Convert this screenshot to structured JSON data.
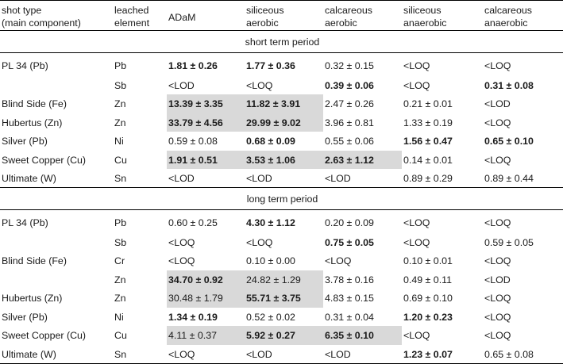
{
  "columns": [
    {
      "line1": "shot type",
      "line2": "(main component)"
    },
    {
      "line1": "leached",
      "line2": "element"
    },
    {
      "line1": "ADaM",
      "line2": ""
    },
    {
      "line1": "siliceous",
      "line2": "aerobic"
    },
    {
      "line1": "calcareous",
      "line2": "aerobic"
    },
    {
      "line1": "siliceous",
      "line2": "anaerobic"
    },
    {
      "line1": "calcareous",
      "line2": "anaerobic"
    }
  ],
  "sections": [
    {
      "title": "short term period",
      "rows": [
        {
          "shot": "PL 34 (Pb)",
          "element": "Pb",
          "cells": [
            {
              "v": "1.81 ± 0.26",
              "bold": true,
              "shade": false
            },
            {
              "v": "1.77 ± 0.36",
              "bold": true,
              "shade": false
            },
            {
              "v": "0.32 ± 0.15",
              "bold": false,
              "shade": false
            },
            {
              "v": "<LOQ",
              "bold": false,
              "shade": false
            },
            {
              "v": "<LOQ",
              "bold": false,
              "shade": false
            }
          ]
        },
        {
          "shot": "",
          "element": "Sb",
          "cells": [
            {
              "v": "<LOD",
              "bold": false,
              "shade": false
            },
            {
              "v": "<LOQ",
              "bold": false,
              "shade": false
            },
            {
              "v": "0.39 ± 0.06",
              "bold": true,
              "shade": false
            },
            {
              "v": "<LOQ",
              "bold": false,
              "shade": false
            },
            {
              "v": "0.31 ± 0.08",
              "bold": true,
              "shade": false
            }
          ]
        },
        {
          "shot": "Blind Side (Fe)",
          "element": "Zn",
          "cells": [
            {
              "v": "13.39 ± 3.35",
              "bold": true,
              "shade": true
            },
            {
              "v": "11.82 ± 3.91",
              "bold": true,
              "shade": true
            },
            {
              "v": "2.47 ± 0.26",
              "bold": false,
              "shade": false
            },
            {
              "v": "0.21 ± 0.01",
              "bold": false,
              "shade": false
            },
            {
              "v": "<LOD",
              "bold": false,
              "shade": false
            }
          ]
        },
        {
          "shot": "Hubertus (Zn)",
          "element": "Zn",
          "cells": [
            {
              "v": "33.79 ± 4.56",
              "bold": true,
              "shade": true
            },
            {
              "v": "29.99 ± 9.02",
              "bold": true,
              "shade": true
            },
            {
              "v": "3.96 ± 0.81",
              "bold": false,
              "shade": false
            },
            {
              "v": "1.33 ± 0.19",
              "bold": false,
              "shade": false
            },
            {
              "v": "<LOQ",
              "bold": false,
              "shade": false
            }
          ]
        },
        {
          "shot": "Silver (Pb)",
          "element": "Ni",
          "cells": [
            {
              "v": "0.59 ± 0.08",
              "bold": false,
              "shade": false
            },
            {
              "v": "0.68 ± 0.09",
              "bold": true,
              "shade": false
            },
            {
              "v": "0.55 ± 0.06",
              "bold": false,
              "shade": false
            },
            {
              "v": "1.56 ± 0.47",
              "bold": true,
              "shade": false
            },
            {
              "v": "0.65 ± 0.10",
              "bold": true,
              "shade": false
            }
          ]
        },
        {
          "shot": "Sweet Copper (Cu)",
          "element": "Cu",
          "cells": [
            {
              "v": "1.91 ± 0.51",
              "bold": true,
              "shade": true
            },
            {
              "v": "3.53 ± 1.06",
              "bold": true,
              "shade": true
            },
            {
              "v": "2.63 ± 1.12",
              "bold": true,
              "shade": true
            },
            {
              "v": "0.14 ± 0.01",
              "bold": false,
              "shade": false
            },
            {
              "v": "<LOQ",
              "bold": false,
              "shade": false
            }
          ]
        },
        {
          "shot": "Ultimate (W)",
          "element": "Sn",
          "cells": [
            {
              "v": "<LOD",
              "bold": false,
              "shade": false
            },
            {
              "v": "<LOD",
              "bold": false,
              "shade": false
            },
            {
              "v": "<LOD",
              "bold": false,
              "shade": false
            },
            {
              "v": "0.89 ± 0.29",
              "bold": false,
              "shade": false
            },
            {
              "v": "0.89 ± 0.44",
              "bold": false,
              "shade": false
            }
          ]
        }
      ]
    },
    {
      "title": "long term period",
      "rows": [
        {
          "shot": "PL 34 (Pb)",
          "element": "Pb",
          "cells": [
            {
              "v": "0.60 ± 0.25",
              "bold": false,
              "shade": false
            },
            {
              "v": "4.30 ± 1.12",
              "bold": true,
              "shade": false
            },
            {
              "v": "0.20 ± 0.09",
              "bold": false,
              "shade": false
            },
            {
              "v": "<LOQ",
              "bold": false,
              "shade": false
            },
            {
              "v": "<LOQ",
              "bold": false,
              "shade": false
            }
          ]
        },
        {
          "shot": "",
          "element": "Sb",
          "cells": [
            {
              "v": "<LOQ",
              "bold": false,
              "shade": false
            },
            {
              "v": "<LOQ",
              "bold": false,
              "shade": false
            },
            {
              "v": "0.75 ± 0.05",
              "bold": true,
              "shade": false
            },
            {
              "v": "<LOQ",
              "bold": false,
              "shade": false
            },
            {
              "v": "0.59 ± 0.05",
              "bold": false,
              "shade": false
            }
          ]
        },
        {
          "shot": "Blind Side (Fe)",
          "element": "Cr",
          "cells": [
            {
              "v": "<LOQ",
              "bold": false,
              "shade": false
            },
            {
              "v": "0.10 ± 0.00",
              "bold": false,
              "shade": false
            },
            {
              "v": "<LOQ",
              "bold": false,
              "shade": false
            },
            {
              "v": "0.10 ± 0.01",
              "bold": false,
              "shade": false
            },
            {
              "v": "<LOQ",
              "bold": false,
              "shade": false
            }
          ]
        },
        {
          "shot": "",
          "element": "Zn",
          "cells": [
            {
              "v": "34.70 ± 0.92",
              "bold": true,
              "shade": true
            },
            {
              "v": "24.82 ± 1.29",
              "bold": false,
              "shade": true
            },
            {
              "v": "3.78 ± 0.16",
              "bold": false,
              "shade": false
            },
            {
              "v": "0.49 ± 0.11",
              "bold": false,
              "shade": false
            },
            {
              "v": "<LOD",
              "bold": false,
              "shade": false
            }
          ]
        },
        {
          "shot": "Hubertus (Zn)",
          "element": "Zn",
          "cells": [
            {
              "v": "30.48 ± 1.79",
              "bold": false,
              "shade": true
            },
            {
              "v": "55.71 ± 3.75",
              "bold": true,
              "shade": true
            },
            {
              "v": "4.83 ± 0.15",
              "bold": false,
              "shade": false
            },
            {
              "v": "0.69 ± 0.10",
              "bold": false,
              "shade": false
            },
            {
              "v": "<LOQ",
              "bold": false,
              "shade": false
            }
          ]
        },
        {
          "shot": "Silver (Pb)",
          "element": "Ni",
          "cells": [
            {
              "v": "1.34 ± 0.19",
              "bold": true,
              "shade": false
            },
            {
              "v": "0.52 ± 0.02",
              "bold": false,
              "shade": false
            },
            {
              "v": "0.31 ± 0.04",
              "bold": false,
              "shade": false
            },
            {
              "v": "1.20 ± 0.23",
              "bold": true,
              "shade": false
            },
            {
              "v": "<LOQ",
              "bold": false,
              "shade": false
            }
          ]
        },
        {
          "shot": "Sweet Copper (Cu)",
          "element": "Cu",
          "cells": [
            {
              "v": "4.11 ± 0.37",
              "bold": false,
              "shade": true
            },
            {
              "v": "5.92 ± 0.27",
              "bold": true,
              "shade": true
            },
            {
              "v": "6.35 ± 0.10",
              "bold": true,
              "shade": true
            },
            {
              "v": "<LOQ",
              "bold": false,
              "shade": false
            },
            {
              "v": "<LOQ",
              "bold": false,
              "shade": false
            }
          ]
        },
        {
          "shot": "Ultimate (W)",
          "element": "Sn",
          "cells": [
            {
              "v": "<LOQ",
              "bold": false,
              "shade": false
            },
            {
              "v": "<LOD",
              "bold": false,
              "shade": false
            },
            {
              "v": "<LOD",
              "bold": false,
              "shade": false
            },
            {
              "v": "1.23 ± 0.07",
              "bold": true,
              "shade": false
            },
            {
              "v": "0.65 ± 0.08",
              "bold": false,
              "shade": false
            }
          ]
        }
      ]
    }
  ]
}
